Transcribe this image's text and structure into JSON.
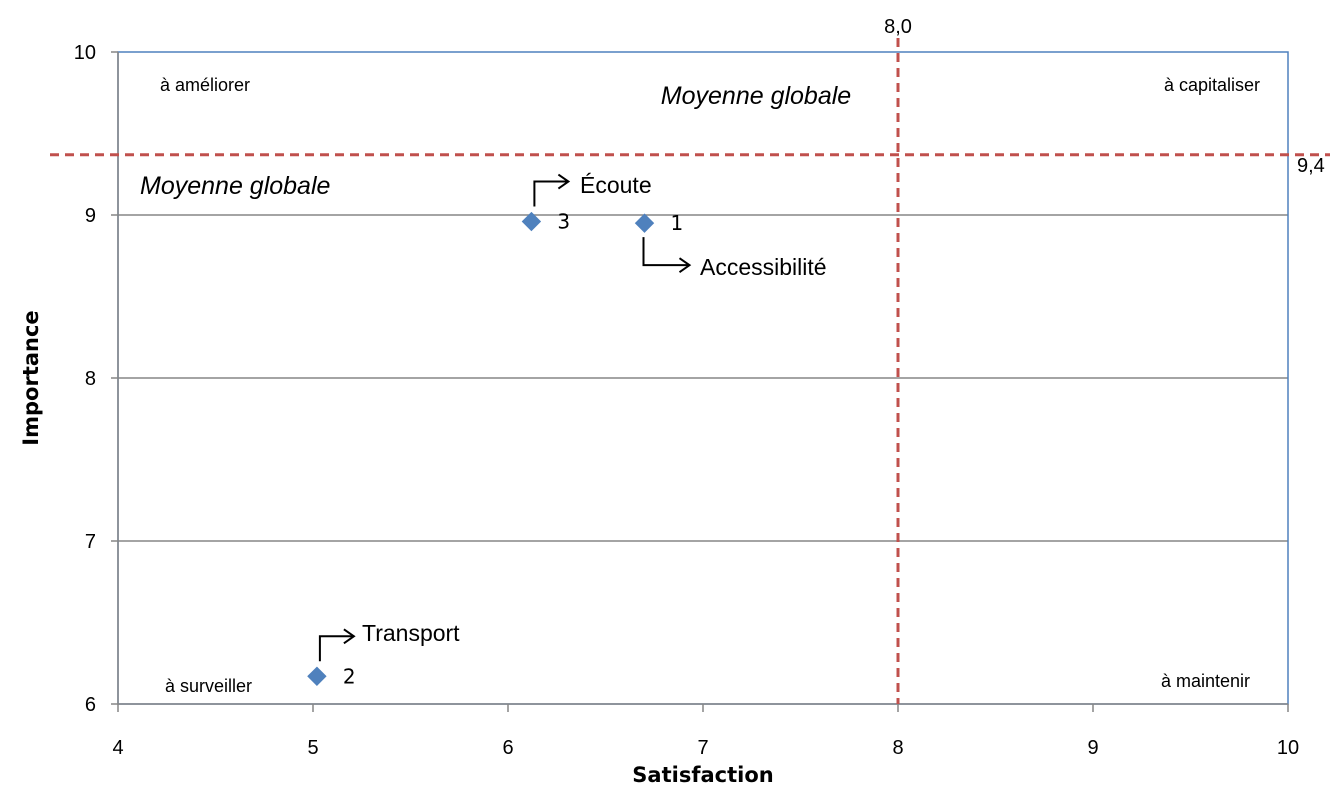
{
  "chart_data": {
    "type": "scatter",
    "title": "",
    "xlabel": "Satisfaction",
    "ylabel": "Importance",
    "xlim": [
      4,
      10
    ],
    "ylim": [
      6,
      10
    ],
    "x_ticks": [
      "4",
      "5",
      "6",
      "7",
      "8",
      "9",
      "10"
    ],
    "y_ticks": [
      "6",
      "7",
      "8",
      "9",
      "10"
    ],
    "grid": "horizontal",
    "marker": "diamond",
    "marker_color": "#4F81BD",
    "points": [
      {
        "number": "1",
        "name": "Accessibilité",
        "x": 6.7,
        "y": 8.95
      },
      {
        "number": "2",
        "name": "Transport",
        "x": 5.02,
        "y": 6.17
      },
      {
        "number": "3",
        "name": "Écoute",
        "x": 6.12,
        "y": 8.96
      }
    ],
    "thresholds": {
      "x": {
        "value": 8.0,
        "label": "8,0"
      },
      "y": {
        "value": 9.37,
        "label": "9,4"
      },
      "label": "Moyenne globale",
      "color": "#C0504D"
    },
    "quadrants": {
      "top_left": "à améliorer",
      "top_right": "à capitaliser",
      "bottom_left": "à surveiller",
      "bottom_right": "à maintenir"
    }
  }
}
